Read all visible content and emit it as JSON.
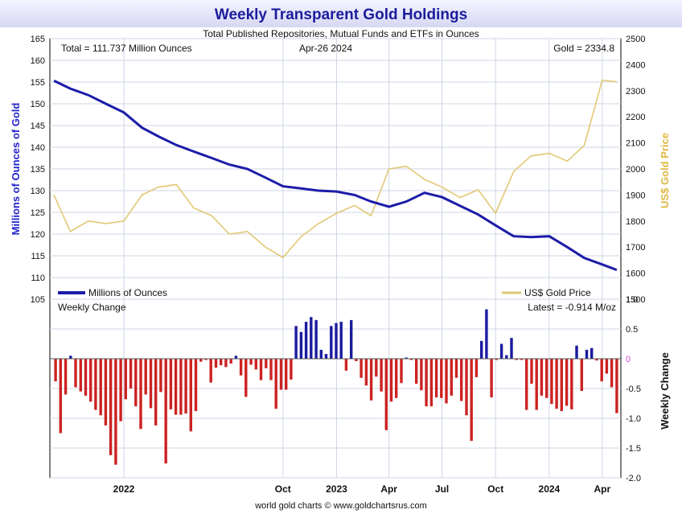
{
  "chart_data": [
    {
      "type": "line",
      "title": "Weekly Transparent Gold Holdings",
      "subtitle": "Total Published Repositories, Mutual Funds and ETFs in Ounces",
      "annotations": {
        "total": "Total = 111.737 Million Ounces",
        "date": "Apr-26  2024",
        "gold": "Gold = 2334.8"
      },
      "ylabel_left": "Millions of Ounces of Gold",
      "ylabel_right": "US$ Gold Price",
      "ylim_left": [
        105,
        165
      ],
      "ylim_right": [
        1500,
        2500
      ],
      "yticks_left": [
        105,
        110,
        115,
        120,
        125,
        130,
        135,
        140,
        145,
        150,
        155,
        160,
        165
      ],
      "yticks_right": [
        1500,
        1600,
        1700,
        1800,
        1900,
        2000,
        2100,
        2200,
        2300,
        2400,
        2500
      ],
      "xlim": [
        "2021-08-27",
        "2024-05-03"
      ],
      "xticks": [
        {
          "label": "2022",
          "date": "2022-01-01"
        },
        {
          "label": "Oct",
          "date": "2022-10-01"
        },
        {
          "label": "2023",
          "date": "2023-01-01"
        },
        {
          "label": "Apr",
          "date": "2023-04-01"
        },
        {
          "label": "Jul",
          "date": "2023-07-01"
        },
        {
          "label": "Oct",
          "date": "2023-10-01"
        },
        {
          "label": "2024",
          "date": "2024-01-01"
        },
        {
          "label": "Apr",
          "date": "2024-04-01"
        }
      ],
      "legend": {
        "placement": "bottom",
        "left_entry": "Millions of Ounces",
        "right_entry": "US$ Gold Price"
      },
      "grid": true,
      "series": [
        {
          "name": "Millions of Ounces",
          "axis": "left",
          "color": "#1c1ca8",
          "points": [
            [
              "2021-09-03",
              155.3
            ],
            [
              "2021-10-01",
              153.5
            ],
            [
              "2021-11-01",
              152.0
            ],
            [
              "2021-12-01",
              150.0
            ],
            [
              "2022-01-01",
              148.0
            ],
            [
              "2022-02-01",
              144.5
            ],
            [
              "2022-03-01",
              142.5
            ],
            [
              "2022-04-01",
              140.5
            ],
            [
              "2022-05-01",
              139.0
            ],
            [
              "2022-06-01",
              137.5
            ],
            [
              "2022-07-01",
              136.0
            ],
            [
              "2022-08-01",
              135.0
            ],
            [
              "2022-09-01",
              133.0
            ],
            [
              "2022-10-01",
              131.0
            ],
            [
              "2022-11-01",
              130.5
            ],
            [
              "2022-12-01",
              130.0
            ],
            [
              "2023-01-01",
              129.8
            ],
            [
              "2023-02-01",
              129.0
            ],
            [
              "2023-03-01",
              127.5
            ],
            [
              "2023-04-01",
              126.3
            ],
            [
              "2023-05-01",
              127.5
            ],
            [
              "2023-06-01",
              129.5
            ],
            [
              "2023-07-01",
              128.5
            ],
            [
              "2023-08-01",
              126.5
            ],
            [
              "2023-09-01",
              124.5
            ],
            [
              "2023-10-01",
              122.0
            ],
            [
              "2023-11-01",
              119.5
            ],
            [
              "2023-12-01",
              119.3
            ],
            [
              "2024-01-01",
              119.5
            ],
            [
              "2024-02-01",
              117.0
            ],
            [
              "2024-03-01",
              114.5
            ],
            [
              "2024-04-01",
              113.0
            ],
            [
              "2024-04-26",
              111.737
            ]
          ]
        },
        {
          "name": "US$ Gold Price",
          "axis": "right",
          "color": "#e2c875",
          "points": [
            [
              "2021-09-03",
              1900
            ],
            [
              "2021-10-01",
              1760
            ],
            [
              "2021-11-01",
              1800
            ],
            [
              "2021-12-01",
              1790
            ],
            [
              "2022-01-01",
              1800
            ],
            [
              "2022-02-01",
              1900
            ],
            [
              "2022-03-01",
              1930
            ],
            [
              "2022-04-01",
              1940
            ],
            [
              "2022-05-01",
              1850
            ],
            [
              "2022-06-01",
              1820
            ],
            [
              "2022-07-01",
              1750
            ],
            [
              "2022-08-01",
              1760
            ],
            [
              "2022-09-01",
              1700
            ],
            [
              "2022-10-01",
              1660
            ],
            [
              "2022-11-01",
              1740
            ],
            [
              "2022-12-01",
              1790
            ],
            [
              "2023-01-01",
              1830
            ],
            [
              "2023-02-01",
              1860
            ],
            [
              "2023-03-01",
              1820
            ],
            [
              "2023-04-01",
              2000
            ],
            [
              "2023-05-01",
              2010
            ],
            [
              "2023-06-01",
              1960
            ],
            [
              "2023-07-01",
              1930
            ],
            [
              "2023-08-01",
              1890
            ],
            [
              "2023-09-01",
              1920
            ],
            [
              "2023-10-01",
              1830
            ],
            [
              "2023-11-01",
              1990
            ],
            [
              "2023-12-01",
              2050
            ],
            [
              "2024-01-01",
              2060
            ],
            [
              "2024-02-01",
              2030
            ],
            [
              "2024-03-01",
              2090
            ],
            [
              "2024-04-01",
              2340
            ],
            [
              "2024-04-26",
              2334.8
            ]
          ]
        }
      ]
    },
    {
      "type": "bar",
      "title": "Weekly Change",
      "annotation": "Latest = -0.914 M/oz",
      "ylabel": "Weekly Change",
      "ylim": [
        -2.0,
        1.0
      ],
      "yticks": [
        -2.0,
        -1.5,
        -1.0,
        -0.5,
        0,
        0.5,
        1.0
      ],
      "zero_color": "#dd44dd",
      "positive_color": "#1a1aa0",
      "negative_color": "#cc2222",
      "values": [
        -0.38,
        -1.25,
        -0.6,
        0.05,
        -0.48,
        -0.55,
        -0.62,
        -0.72,
        -0.86,
        -0.95,
        -1.12,
        -1.62,
        -1.78,
        -1.05,
        -0.68,
        -0.5,
        -0.8,
        -1.18,
        -0.6,
        -0.83,
        -1.12,
        -0.56,
        -1.76,
        -0.85,
        -0.94,
        -0.94,
        -0.92,
        -1.22,
        -0.88,
        -0.05,
        -0.02,
        -0.4,
        -0.15,
        -0.11,
        -0.14,
        -0.08,
        0.05,
        -0.28,
        -0.64,
        -0.1,
        -0.18,
        -0.36,
        -0.16,
        -0.36,
        -0.84,
        -0.52,
        -0.52,
        -0.35,
        0.55,
        0.45,
        0.62,
        0.7,
        0.65,
        0.15,
        0.08,
        0.55,
        0.6,
        0.62,
        -0.2,
        0.65,
        -0.04,
        -0.32,
        -0.45,
        -0.7,
        -0.3,
        -0.55,
        -1.2,
        -0.72,
        -0.66,
        -0.41,
        0.02,
        -0.02,
        -0.42,
        -0.53,
        -0.8,
        -0.8,
        -0.65,
        -0.66,
        -0.75,
        -0.62,
        -0.32,
        -0.71,
        -0.95,
        -1.38,
        -0.31,
        0.3,
        0.83,
        -0.65,
        -0.02,
        0.25,
        0.06,
        0.35,
        -0.02,
        -0.02,
        -0.86,
        -0.42,
        -0.86,
        -0.62,
        -0.66,
        -0.76,
        -0.84,
        -0.88,
        -0.79,
        -0.85,
        0.22,
        -0.54,
        0.15,
        0.18,
        -0.03,
        -0.38,
        -0.25,
        -0.48,
        -0.914
      ]
    }
  ],
  "footer": "world gold charts © www.goldchartsrus.com"
}
